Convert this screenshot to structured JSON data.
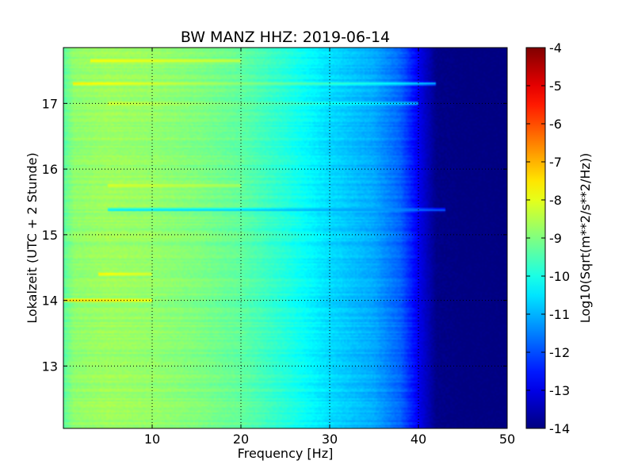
{
  "chart_data": {
    "type": "heatmap",
    "title": "BW MANZ HHZ: 2019-06-14",
    "xlabel": "Frequency [Hz]",
    "ylabel": "Lokalzeit (UTC + 2 Stunde)",
    "colorbar_label": "Log10(Sqrt(m**2/s**2/Hz))",
    "xlim": [
      0,
      50
    ],
    "ylim": [
      17.85,
      12.05
    ],
    "x_ticks": [
      "10",
      "20",
      "30",
      "40",
      "50"
    ],
    "y_ticks": [
      "13",
      "14",
      "15",
      "16",
      "17"
    ],
    "colorbar_range": [
      -14,
      -4
    ],
    "colorbar_ticks": [
      "-4",
      "-5",
      "-6",
      "-7",
      "-8",
      "-9",
      "-10",
      "-11",
      "-12",
      "-13",
      "-14"
    ],
    "colormap": "jet",
    "grid": true,
    "frequency_profile": {
      "x": [
        0,
        5,
        10,
        15,
        20,
        25,
        30,
        35,
        38,
        40,
        42,
        45,
        50
      ],
      "values": [
        -8.9,
        -8.7,
        -8.8,
        -9.0,
        -9.3,
        -9.9,
        -10.6,
        -11.1,
        -11.8,
        -12.9,
        -13.9,
        -14.0,
        -14.0
      ]
    },
    "time_events": [
      {
        "y": 14.0,
        "x_range": [
          0,
          10
        ],
        "values": [
          -6.9,
          -7.6
        ]
      },
      {
        "y": 14.4,
        "x_range": [
          4,
          10
        ],
        "values": [
          -7.4,
          -8.0
        ]
      },
      {
        "y": 15.38,
        "x_range": [
          5,
          43
        ],
        "values": [
          -10.8,
          -11.4
        ]
      },
      {
        "y": 15.75,
        "x_range": [
          5,
          20
        ],
        "values": [
          -7.9,
          -8.4
        ]
      },
      {
        "y": 17.0,
        "x_range": [
          5,
          40
        ],
        "values": [
          -8.0,
          -10.6
        ]
      },
      {
        "y": 17.3,
        "x_range": [
          1,
          42
        ],
        "values": [
          -7.3,
          -10.4
        ]
      },
      {
        "y": 17.65,
        "x_range": [
          3,
          20
        ],
        "values": [
          -7.6,
          -8.2
        ]
      }
    ]
  }
}
